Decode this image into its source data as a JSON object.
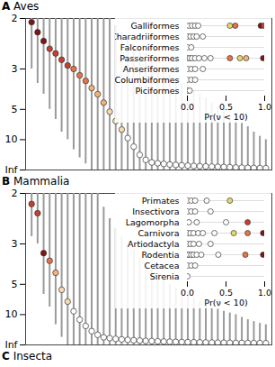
{
  "chart_data": [
    {
      "type": "scatter",
      "title": "A Aves",
      "x": [
        1,
        2,
        3,
        4,
        5,
        6,
        7,
        8,
        9,
        10,
        11,
        12,
        13,
        14,
        15,
        16,
        17,
        18,
        19,
        20,
        21,
        22,
        23,
        24,
        25,
        26,
        27,
        28,
        29,
        30,
        31,
        32,
        33,
        34,
        35,
        36,
        37,
        38,
        39,
        40
      ],
      "values": [
        2.05,
        2.2,
        2.35,
        2.5,
        2.6,
        2.75,
        2.9,
        3.0,
        3.2,
        3.4,
        3.7,
        4.0,
        4.5,
        5.2,
        6.2,
        7.5,
        9.5,
        13,
        20,
        30,
        40,
        45,
        50,
        55,
        60,
        65,
        70,
        75,
        80,
        85,
        90,
        95,
        100,
        110,
        120,
        130,
        140,
        150,
        160,
        170
      ],
      "lower": [
        2,
        2,
        2,
        2,
        2,
        2,
        2,
        2,
        2,
        2,
        2,
        2,
        2,
        2,
        2.1,
        2.2,
        2.3,
        2.4,
        2.5,
        2.6,
        2.8,
        3,
        3,
        3.2,
        3.3,
        3.5,
        3.5,
        3.8,
        4,
        4.2,
        4.5,
        4.8,
        5,
        5.5,
        6,
        6.5,
        7,
        8,
        9,
        10
      ],
      "upper": [
        3,
        3.5,
        4,
        5,
        6,
        8,
        10,
        15,
        25,
        50,
        1000000,
        1000000,
        1000000,
        1000000,
        1000000,
        1000000,
        1000000,
        1000000,
        1000000,
        1000000,
        1000000,
        1000000,
        1000000,
        1000000,
        1000000,
        1000000,
        1000000,
        1000000,
        1000000,
        1000000,
        1000000,
        1000000,
        1000000,
        1000000,
        1000000,
        1000000,
        1000000,
        1000000,
        1000000,
        1000000
      ],
      "colors": [
        "#7f1416",
        "#7f1416",
        "#7f1416",
        "#c6402e",
        "#c6402e",
        "#c6402e",
        "#c6402e",
        "#e8734a",
        "#e8734a",
        "#e8734a",
        "#f3b27a",
        "#f3b27a",
        "#f3b27a",
        "#f7dcb0",
        "#f7dcb0",
        "#f7dcb0",
        "#ffffff",
        "#ffffff",
        "#ffffff",
        "#ffffff",
        "#ffffff",
        "#ffffff",
        "#ffffff",
        "#ffffff",
        "#ffffff",
        "#ffffff",
        "#ffffff",
        "#ffffff",
        "#ffffff",
        "#ffffff",
        "#ffffff",
        "#ffffff",
        "#ffffff",
        "#ffffff",
        "#ffffff",
        "#ffffff",
        "#ffffff",
        "#ffffff",
        "#ffffff",
        "#ffffff"
      ],
      "xlim": [
        0,
        41
      ],
      "ylim": [
        2,
        1000000
      ],
      "yticks": [
        2,
        3,
        5,
        10,
        {
          "value": 1000000,
          "label": "Inf"
        }
      ],
      "tick_labels": "y",
      "inset": {
        "type": "dot",
        "categories": [
          "Galliformes",
          "Charadriiformes",
          "Falconiformes",
          "Passeriformes",
          "Anseriformes",
          "Columbiformes",
          "Piciformes"
        ],
        "values": [
          [
            0.02,
            0.06,
            0.1,
            0.14,
            0.55,
            0.62,
            0.95,
            0.99
          ],
          [
            0,
            0.04,
            0.08,
            0.12,
            0.2
          ],
          [
            0,
            0.05
          ],
          [
            0,
            0.03,
            0.06,
            0.1,
            0.15,
            0.22,
            0.3,
            0.55,
            0.68,
            0.76,
            0.98
          ],
          [
            0,
            0.05,
            0.1,
            0.2
          ],
          [
            0,
            0.05,
            0.1
          ],
          [
            0,
            0.03
          ]
        ],
        "colors": [
          [
            "#ffffff",
            "#ffffff",
            "#ffffff",
            "#ffffff",
            "#e8d86a",
            "#e8734a",
            "#7f1416",
            "#c6402e"
          ],
          [
            "#ffffff",
            "#ffffff",
            "#ffffff",
            "#ffffff",
            "#ffffff"
          ],
          [
            "#ffffff",
            "#ffffff"
          ],
          [
            "#ffffff",
            "#ffffff",
            "#ffffff",
            "#ffffff",
            "#ffffff",
            "#ffffff",
            "#ffffff",
            "#e8734a",
            "#e8d86a",
            "#f3b27a",
            "#7f1416"
          ],
          [
            "#ffffff",
            "#ffffff",
            "#ffffff",
            "#ffffff"
          ],
          [
            "#ffffff",
            "#ffffff",
            "#ffffff"
          ],
          [
            "#ffffff",
            "#ffffff"
          ]
        ],
        "xlim": [
          0,
          1
        ],
        "xticks": [
          {
            "value": 0,
            "label": "0.0"
          },
          {
            "value": 0.5,
            "label": "0.5"
          },
          {
            "value": 1,
            "label": "1.0"
          }
        ],
        "xlabel": "Pr(ν < 10)"
      }
    },
    {
      "type": "scatter",
      "title": "B Mammalia",
      "x": [
        1,
        2,
        3,
        4,
        5,
        6,
        7,
        8,
        9,
        10,
        11,
        12,
        13,
        14,
        15,
        16,
        17,
        18,
        19,
        20,
        21,
        22,
        23,
        24,
        25,
        26,
        27,
        28,
        29,
        30,
        31,
        32,
        33,
        34,
        35,
        36,
        37,
        38,
        39,
        40
      ],
      "values": [
        2.15,
        2.3,
        3.3,
        3.6,
        4.2,
        5.5,
        7,
        9,
        12,
        16,
        22,
        30,
        40,
        45,
        50,
        55,
        60,
        65,
        70,
        75,
        80,
        85,
        90,
        95,
        100,
        105,
        110,
        115,
        120,
        125,
        130,
        135,
        140,
        145,
        150,
        155,
        160,
        165,
        170,
        180
      ],
      "lower": [
        2,
        2,
        2,
        2,
        2,
        2,
        2,
        2,
        2,
        2,
        2,
        2,
        2.2,
        2.4,
        2.6,
        2.8,
        3,
        3.2,
        3.5,
        3.8,
        4,
        4.3,
        4.6,
        5,
        5.3,
        5.6,
        6,
        6.5,
        7,
        7.5,
        8,
        8.5,
        9,
        9.5,
        10,
        11,
        12,
        13,
        14,
        15
      ],
      "upper": [
        2.8,
        3,
        6,
        8,
        15,
        40,
        1000000,
        1000000,
        1000000,
        1000000,
        1000000,
        1000000,
        1000000,
        1000000,
        1000000,
        1000000,
        1000000,
        1000000,
        1000000,
        1000000,
        1000000,
        1000000,
        1000000,
        1000000,
        1000000,
        1000000,
        1000000,
        1000000,
        1000000,
        1000000,
        1000000,
        1000000,
        1000000,
        1000000,
        1000000,
        1000000,
        1000000,
        1000000,
        1000000,
        1000000
      ],
      "colors": [
        "#c6402e",
        "#c6402e",
        "#7f1416",
        "#e8734a",
        "#f3b27a",
        "#f7dcb0",
        "#f7dcb0",
        "#ffffff",
        "#ffffff",
        "#ffffff",
        "#ffffff",
        "#ffffff",
        "#ffffff",
        "#ffffff",
        "#ffffff",
        "#ffffff",
        "#ffffff",
        "#ffffff",
        "#ffffff",
        "#ffffff",
        "#ffffff",
        "#ffffff",
        "#ffffff",
        "#ffffff",
        "#ffffff",
        "#ffffff",
        "#ffffff",
        "#ffffff",
        "#ffffff",
        "#ffffff",
        "#ffffff",
        "#ffffff",
        "#ffffff",
        "#ffffff",
        "#ffffff",
        "#ffffff",
        "#ffffff",
        "#ffffff",
        "#ffffff",
        "#ffffff"
      ],
      "xlim": [
        0,
        41
      ],
      "ylim": [
        2,
        1000000
      ],
      "yticks": [
        2,
        3,
        5,
        10,
        {
          "value": 1000000,
          "label": "Inf"
        }
      ],
      "tick_labels": "y",
      "inset": {
        "type": "dot",
        "categories": [
          "Primates",
          "Insectivora",
          "Lagomorpha",
          "Carnivora",
          "Artiodactyla",
          "Rodentia",
          "Cetacea",
          "Sirenia"
        ],
        "values": [
          [
            0,
            0.05,
            0.1,
            0.25,
            0.55
          ],
          [
            0,
            0.05,
            0.1,
            0.3
          ],
          [
            0.02,
            0.12,
            0.5,
            0.78
          ],
          [
            0,
            0.04,
            0.08,
            0.14,
            0.2,
            0.35,
            0.6,
            0.78,
            0.98
          ],
          [
            0,
            0.04,
            0.08,
            0.15,
            0.3
          ],
          [
            0,
            0.02,
            0.05,
            0.08,
            0.12,
            0.18,
            0.4,
            0.75,
            0.98
          ],
          [
            0,
            0.05,
            0.1
          ],
          [
            0
          ]
        ],
        "colors": [
          [
            "#ffffff",
            "#ffffff",
            "#ffffff",
            "#ffffff",
            "#e8d86a"
          ],
          [
            "#ffffff",
            "#ffffff",
            "#ffffff",
            "#ffffff"
          ],
          [
            "#ffffff",
            "#ffffff",
            "#ffffff",
            "#c6402e"
          ],
          [
            "#ffffff",
            "#ffffff",
            "#ffffff",
            "#ffffff",
            "#ffffff",
            "#ffffff",
            "#e8d86a",
            "#e8734a",
            "#7f1416"
          ],
          [
            "#ffffff",
            "#ffffff",
            "#ffffff",
            "#ffffff",
            "#ffffff"
          ],
          [
            "#ffffff",
            "#ffffff",
            "#ffffff",
            "#ffffff",
            "#ffffff",
            "#ffffff",
            "#ffffff",
            "#e8734a",
            "#7f1416"
          ],
          [
            "#ffffff",
            "#ffffff",
            "#ffffff"
          ],
          [
            "#ffffff"
          ]
        ],
        "xlim": [
          0,
          1
        ],
        "xticks": [
          {
            "value": 0,
            "label": "0.0"
          },
          {
            "value": 0.5,
            "label": "0.5"
          },
          {
            "value": 1,
            "label": "1.0"
          }
        ],
        "xlabel": "Pr(ν < 10)"
      }
    }
  ],
  "footer": "C Insecta"
}
